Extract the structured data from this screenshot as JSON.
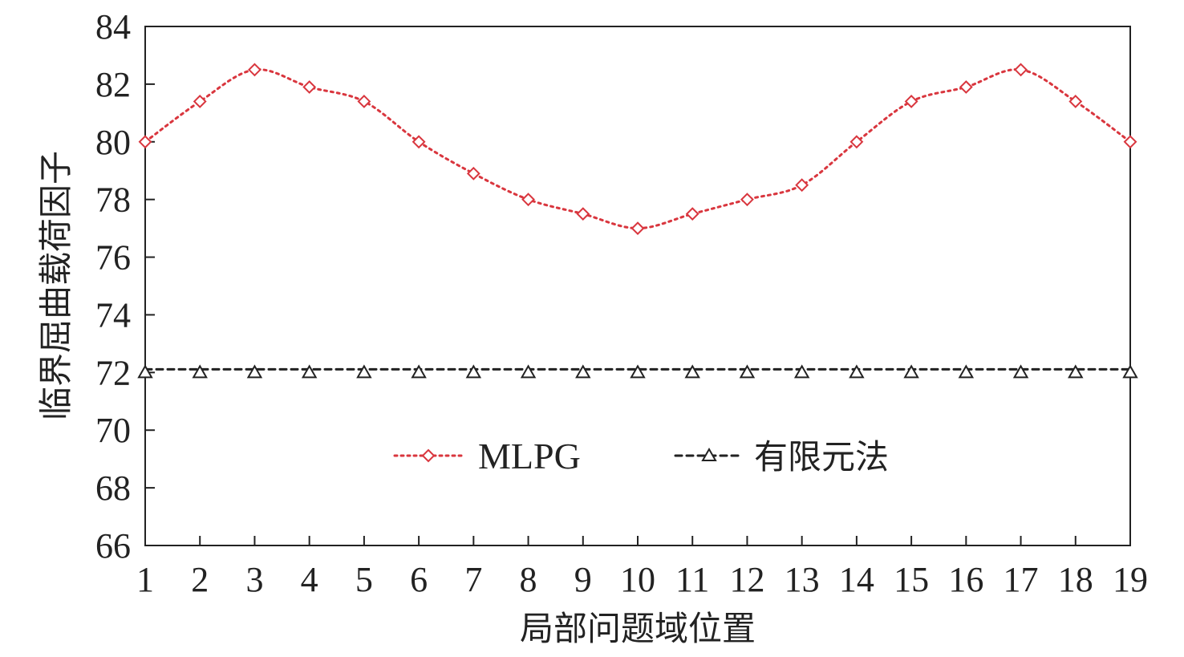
{
  "chart_data": {
    "type": "line",
    "xlabel": "局部问题域位置",
    "ylabel": "临界屈曲载荷因子",
    "x": [
      1,
      2,
      3,
      4,
      5,
      6,
      7,
      8,
      9,
      10,
      11,
      12,
      13,
      14,
      15,
      16,
      17,
      18,
      19
    ],
    "xlim": [
      1,
      19
    ],
    "ylim": [
      66,
      84
    ],
    "yticks": [
      66,
      68,
      70,
      72,
      74,
      76,
      78,
      80,
      82,
      84
    ],
    "grid": false,
    "legend_position": "center",
    "series": [
      {
        "name": "MLPG",
        "values": [
          80,
          81.4,
          82.5,
          81.9,
          81.4,
          80,
          78.9,
          78,
          77.5,
          77,
          77.5,
          78,
          78.5,
          80,
          81.4,
          81.9,
          82.5,
          81.4,
          80
        ],
        "color": "#d9363e",
        "line_style": "dotted",
        "marker": "diamond"
      },
      {
        "name": "有限元法",
        "values": [
          72,
          72,
          72,
          72,
          72,
          72,
          72,
          72,
          72,
          72,
          72,
          72,
          72,
          72,
          72,
          72,
          72,
          72,
          72
        ],
        "color": "#222222",
        "line_style": "dashed",
        "marker": "triangle"
      }
    ]
  }
}
